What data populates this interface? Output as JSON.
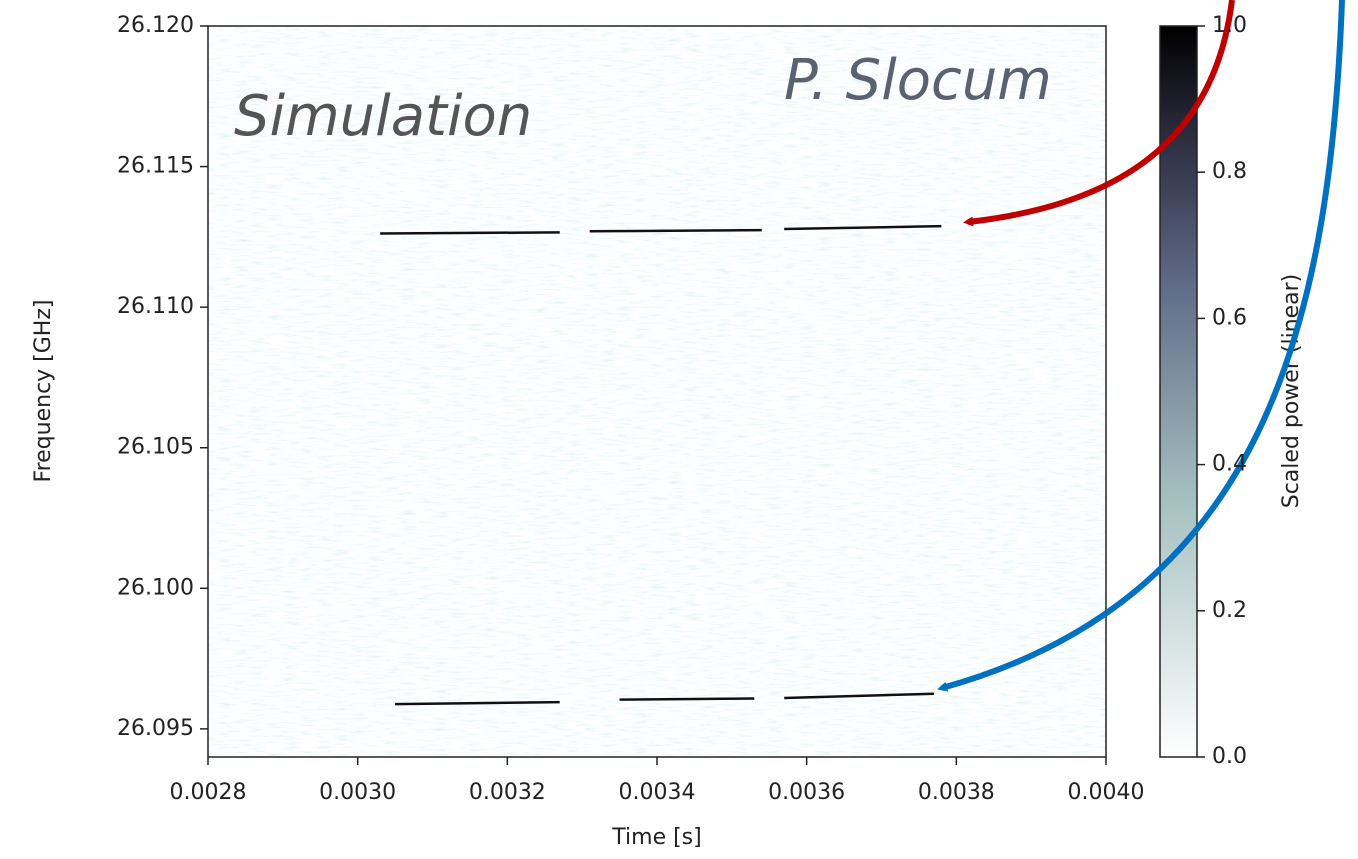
{
  "chart_data": {
    "type": "line",
    "xlabel": "Time [s]",
    "ylabel": "Frequency [GHz]",
    "xlim": [
      0.0028,
      0.004
    ],
    "ylim": [
      26.094,
      26.12
    ],
    "xticks": [
      {
        "value": 0.0028,
        "label": "0.0028"
      },
      {
        "value": 0.003,
        "label": "0.0030"
      },
      {
        "value": 0.0032,
        "label": "0.0032"
      },
      {
        "value": 0.0034,
        "label": "0.0034"
      },
      {
        "value": 0.0036,
        "label": "0.0036"
      },
      {
        "value": 0.0038,
        "label": "0.0038"
      },
      {
        "value": 0.004,
        "label": "0.0040"
      }
    ],
    "yticks": [
      {
        "value": 26.095,
        "label": "26.095"
      },
      {
        "value": 26.1,
        "label": "26.100"
      },
      {
        "value": 26.105,
        "label": "26.105"
      },
      {
        "value": 26.11,
        "label": "26.110"
      },
      {
        "value": 26.115,
        "label": "26.115"
      },
      {
        "value": 26.12,
        "label": "26.120"
      }
    ],
    "series": [
      {
        "color": "#111111",
        "x": [
          0.00303,
          0.00327,
          null,
          0.00331,
          0.00354,
          null,
          0.00357,
          0.00378
        ],
        "values": [
          26.11262,
          26.11266,
          null,
          26.1127,
          26.11274,
          null,
          26.11278,
          26.11288
        ]
      },
      {
        "color": "#111111",
        "x": [
          0.00305,
          0.00327,
          null,
          0.00335,
          0.00353,
          null,
          0.00357,
          0.00377
        ],
        "values": [
          26.09588,
          26.09595,
          null,
          26.09604,
          26.09608,
          null,
          26.0961,
          26.09625
        ]
      }
    ],
    "colorbar": {
      "label": "Scaled power (linear)",
      "lim": [
        0,
        1
      ],
      "ticks": [
        {
          "value": 0,
          "label": "0.0"
        },
        {
          "value": 0.2,
          "label": "0.2"
        },
        {
          "value": 0.4,
          "label": "0.4"
        },
        {
          "value": 0.6,
          "label": "0.6"
        },
        {
          "value": 0.8,
          "label": "0.8"
        },
        {
          "value": 1,
          "label": "1.0"
        }
      ]
    },
    "annotations": [
      "Simulation",
      "P. Slocum"
    ]
  }
}
